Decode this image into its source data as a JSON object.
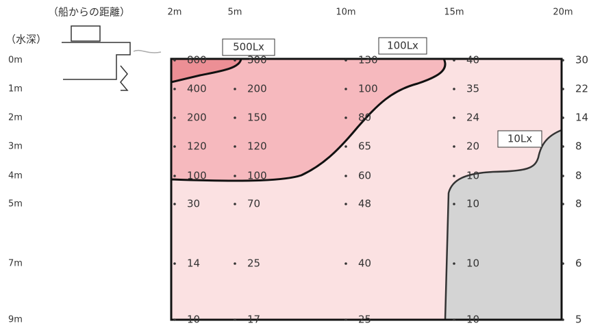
{
  "header": {
    "distance_label": "（船からの距離）",
    "depth_label": "（水深）"
  },
  "distances": [
    "2m",
    "5m",
    "10m",
    "15m",
    "20m"
  ],
  "rows": [
    {
      "depth": "0m",
      "values": [
        800,
        300,
        130,
        40,
        30
      ]
    },
    {
      "depth": "1m",
      "values": [
        400,
        200,
        100,
        35,
        22
      ]
    },
    {
      "depth": "2m",
      "values": [
        200,
        150,
        80,
        24,
        14
      ]
    },
    {
      "depth": "3m",
      "values": [
        120,
        120,
        65,
        20,
        8
      ]
    },
    {
      "depth": "4m",
      "values": [
        100,
        100,
        60,
        10,
        8
      ]
    },
    {
      "depth": "5m",
      "values": [
        30,
        70,
        48,
        10,
        8
      ]
    },
    {
      "depth": "7m",
      "values": [
        14,
        25,
        40,
        10,
        6
      ]
    },
    {
      "depth": "9m",
      "values": [
        10,
        17,
        25,
        10,
        5
      ]
    }
  ],
  "contours": [
    "500Lx",
    "100Lx",
    "10Lx"
  ]
}
